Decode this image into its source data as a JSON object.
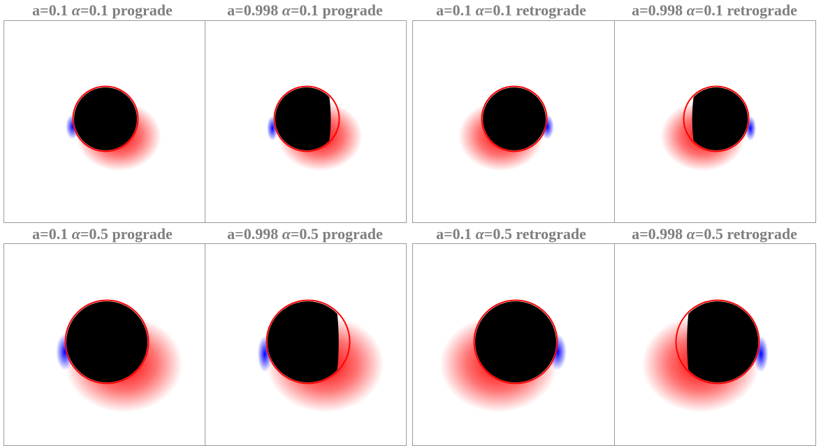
{
  "panels": [
    {
      "a": "a=0.1",
      "alpha_symbol": "α",
      "alpha_value": "=0.1",
      "orbit": "prograde",
      "spin": 0.1,
      "alpha": 0.1,
      "direction": "prograde"
    },
    {
      "a": "a=0.998",
      "alpha_symbol": "α",
      "alpha_value": "=0.1",
      "orbit": "prograde",
      "spin": 0.998,
      "alpha": 0.1,
      "direction": "prograde"
    },
    {
      "a": "a=0.1",
      "alpha_symbol": "α",
      "alpha_value": "=0.1",
      "orbit": "retrograde",
      "spin": 0.1,
      "alpha": 0.1,
      "direction": "retrograde"
    },
    {
      "a": "a=0.998",
      "alpha_symbol": "α",
      "alpha_value": "=0.1",
      "orbit": "retrograde",
      "spin": 0.998,
      "alpha": 0.1,
      "direction": "retrograde"
    },
    {
      "a": "a=0.1",
      "alpha_symbol": "α",
      "alpha_value": "=0.5",
      "orbit": "prograde",
      "spin": 0.1,
      "alpha": 0.5,
      "direction": "prograde"
    },
    {
      "a": "a=0.998",
      "alpha_symbol": "α",
      "alpha_value": "=0.5",
      "orbit": "prograde",
      "spin": 0.998,
      "alpha": 0.5,
      "direction": "prograde"
    },
    {
      "a": "a=0.1",
      "alpha_symbol": "α",
      "alpha_value": "=0.5",
      "orbit": "retrograde",
      "spin": 0.1,
      "alpha": 0.5,
      "direction": "retrograde"
    },
    {
      "a": "a=0.998",
      "alpha_symbol": "α",
      "alpha_value": "=0.5",
      "orbit": "retrograde",
      "spin": 0.998,
      "alpha": 0.5,
      "direction": "retrograde"
    }
  ],
  "colors": {
    "label": "#7f7f7f",
    "frame": "#9a9a9a",
    "redshift": "#ff0000",
    "blueshift": "#0000ff",
    "shadow": "#000000",
    "background": "#ffffff"
  }
}
